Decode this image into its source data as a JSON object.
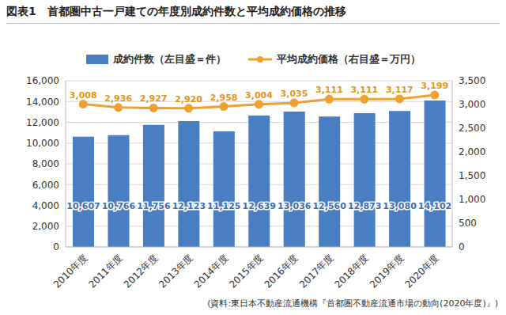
{
  "chart_data": {
    "type": "bar",
    "title": "図表1　首都圏中古一戸建ての年度別成約件数と平均成約価格の推移",
    "note": "(資料:東日本不動産流通機構『首都圏不動産流通市場の動向(2020年度)』)",
    "categories": [
      "2010年度",
      "2011年度",
      "2012年度",
      "2013年度",
      "2014年度",
      "2015年度",
      "2016年度",
      "2017年度",
      "2018年度",
      "2019年度",
      "2020年度"
    ],
    "series": [
      {
        "name": "成約件数（左目盛＝件）",
        "type": "bar",
        "color": "#4a7ec2",
        "values": [
          10607,
          10766,
          11756,
          12123,
          11125,
          12639,
          13036,
          12560,
          12873,
          13080,
          14102
        ],
        "value_labels": [
          "10,607",
          "10,766",
          "11,756",
          "12,123",
          "11,125",
          "12,639",
          "13,036",
          "12,560",
          "12,873",
          "13,080",
          "14,102"
        ]
      },
      {
        "name": "平均成約価格（右目盛＝万円）",
        "type": "line",
        "axis": "y2",
        "color": "#f0a030",
        "marker": "circle",
        "values": [
          3008,
          2936,
          2927,
          2920,
          2958,
          3004,
          3035,
          3111,
          3111,
          3117,
          3199
        ],
        "value_labels": [
          "3,008",
          "2,936",
          "2,927",
          "2,920",
          "2,958",
          "3,004",
          "3,035",
          "3,111",
          "3,111",
          "3,117",
          "3,199"
        ]
      }
    ],
    "ylim": [
      0,
      16000
    ],
    "yticks": [
      0,
      {
        "value": 2000,
        "label": "2,000"
      },
      {
        "value": 4000,
        "label": "4,000"
      },
      {
        "value": 6000,
        "label": "6,000"
      },
      {
        "value": 8000,
        "label": "8,000"
      },
      {
        "value": 10000,
        "label": "10,000"
      },
      {
        "value": 12000,
        "label": "12,000"
      },
      {
        "value": 14000,
        "label": "14,000"
      },
      {
        "value": 16000,
        "label": "16,000"
      }
    ],
    "y2lim": [
      0,
      3500
    ],
    "y2ticks": [
      0,
      500,
      {
        "value": 1000,
        "label": "1,000"
      },
      {
        "value": 1500,
        "label": "1,500"
      },
      {
        "value": 2000,
        "label": "2,000"
      },
      {
        "value": 2500,
        "label": "2,500"
      },
      {
        "value": 3000,
        "label": "3,000"
      },
      {
        "value": 3500,
        "label": "3,500"
      }
    ],
    "grid": true,
    "legend": "top",
    "data_labels": true
  }
}
